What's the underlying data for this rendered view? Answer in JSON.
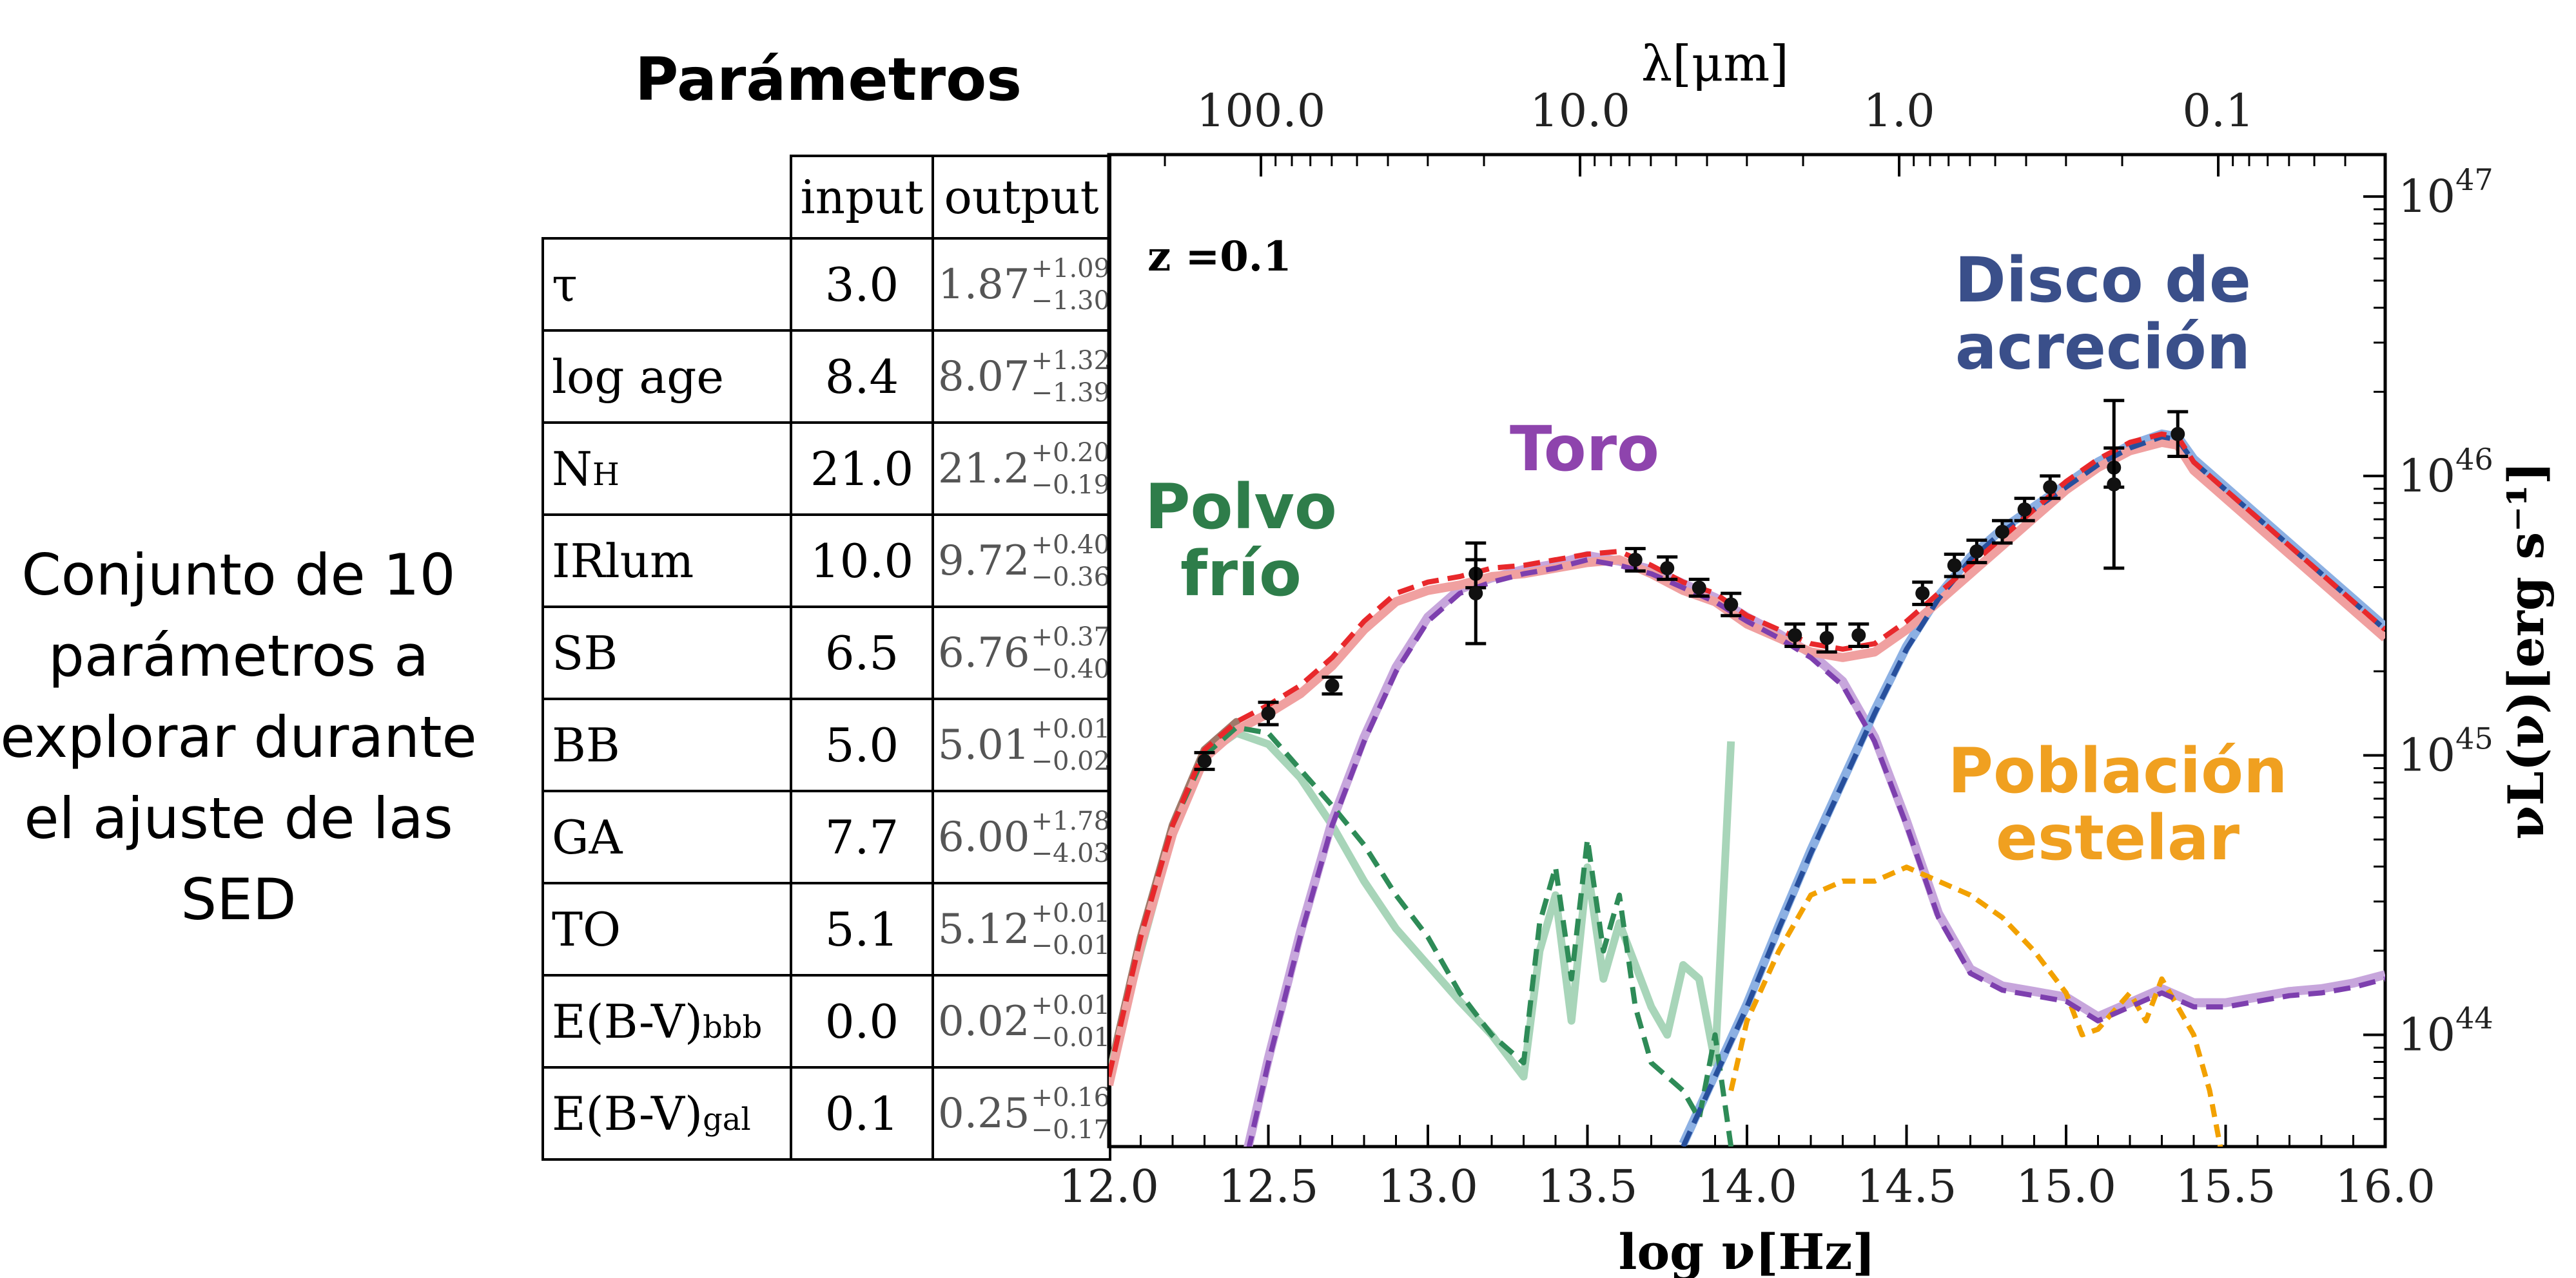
{
  "side_note": {
    "lines": [
      "Conjunto de 10",
      "parámetros a",
      "explorar durante",
      "el ajuste de las",
      "SED"
    ]
  },
  "params": {
    "title": "Parámetros",
    "headers": {
      "input": "input",
      "output": "output"
    },
    "rows": [
      {
        "name": "τ",
        "sub": "",
        "input": "3.0",
        "out": "1.87",
        "plus": "+1.09",
        "minus": "−1.30"
      },
      {
        "name": "log age",
        "sub": "",
        "input": "8.4",
        "out": "8.07",
        "plus": "+1.32",
        "minus": "−1.39"
      },
      {
        "name": "N",
        "sub": "H",
        "input": "21.0",
        "out": "21.2",
        "plus": "+0.20",
        "minus": "−0.19"
      },
      {
        "name": "IRlum",
        "sub": "",
        "input": "10.0",
        "out": "9.72",
        "plus": "+0.40",
        "minus": "−0.36"
      },
      {
        "name": "SB",
        "sub": "",
        "input": "6.5",
        "out": "6.76",
        "plus": "+0.37",
        "minus": "−0.40"
      },
      {
        "name": "BB",
        "sub": "",
        "input": "5.0",
        "out": "5.01",
        "plus": "+0.01",
        "minus": "−0.02"
      },
      {
        "name": "GA",
        "sub": "",
        "input": "7.7",
        "out": "6.00",
        "plus": "+1.78",
        "minus": "−4.03"
      },
      {
        "name": "TO",
        "sub": "",
        "input": "5.1",
        "out": "5.12",
        "plus": "+0.01",
        "minus": "−0.01"
      },
      {
        "name": "E(B-V)",
        "sub": "bbb",
        "input": "0.0",
        "out": "0.02",
        "plus": "+0.01",
        "minus": "−0.01"
      },
      {
        "name": "E(B-V)",
        "sub": "gal",
        "input": "0.1",
        "out": "0.25",
        "plus": "+0.16",
        "minus": "−0.17"
      }
    ]
  },
  "chart_data": {
    "type": "line",
    "xlabel": "log ν[Hz]",
    "top_xlabel": "λ[μm]",
    "ylabel": "νL(ν)[erg s⁻¹]",
    "xlim": [
      12.0,
      16.0
    ],
    "ylim": [
      43.6,
      47.15
    ],
    "x_ticks": [
      "12.0",
      "12.5",
      "13.0",
      "13.5",
      "14.0",
      "14.5",
      "15.0",
      "15.5",
      "16.0"
    ],
    "top_ticks": [
      {
        "lambda_um": 100,
        "label": "100.0"
      },
      {
        "lambda_um": 10,
        "label": "10.0"
      },
      {
        "lambda_um": 1,
        "label": "1.0"
      },
      {
        "lambda_um": 0.1,
        "label": "0.1"
      }
    ],
    "y_ticks": [
      {
        "exp": 47,
        "label": "47"
      },
      {
        "exp": 46,
        "label": "46"
      },
      {
        "exp": 45,
        "label": "45"
      },
      {
        "exp": 44,
        "label": "44"
      }
    ],
    "y_tick_base": "10",
    "annotation": "z =0.1",
    "labels": {
      "cold_dust": [
        "Polvo",
        "frío"
      ],
      "torus": [
        "Toro"
      ],
      "disk": [
        "Disco de",
        "acreción"
      ],
      "stellar": [
        "Población",
        "estelar"
      ]
    },
    "colors": {
      "total": "#e8282b",
      "total_median": "#f0a0a0",
      "cold_dust": "#2e8b57",
      "cold_dust_median": "#a8d5b9",
      "torus": "#7d3fae",
      "torus_median": "#c7a6dc",
      "disk": "#274f9c",
      "disk_median": "#8cb0e3",
      "stellar": "#f2a100",
      "early_ir": "#a0796a",
      "label_cold_dust": "#2e7d4a",
      "label_torus": "#8e44ad",
      "label_disk": "#3a4f8a",
      "label_stellar": "#f0a020"
    },
    "series": [
      {
        "key": "total",
        "style": "dashed",
        "x": [
          12.0,
          12.1,
          12.2,
          12.3,
          12.4,
          12.5,
          12.6,
          12.7,
          12.8,
          12.9,
          13.0,
          13.1,
          13.2,
          13.3,
          13.4,
          13.5,
          13.6,
          13.7,
          13.8,
          13.9,
          14.0,
          14.1,
          14.2,
          14.3,
          14.4,
          14.5,
          14.6,
          14.7,
          14.8,
          14.9,
          15.0,
          15.1,
          15.2,
          15.3,
          15.35,
          15.4,
          15.5,
          15.6,
          15.7,
          15.8,
          15.9,
          16.0
        ],
        "y": [
          43.85,
          44.35,
          44.75,
          45.02,
          45.12,
          45.18,
          45.25,
          45.35,
          45.48,
          45.58,
          45.62,
          45.64,
          45.67,
          45.68,
          45.7,
          45.72,
          45.73,
          45.68,
          45.62,
          45.58,
          45.5,
          45.45,
          45.4,
          45.38,
          45.4,
          45.48,
          45.58,
          45.68,
          45.78,
          45.88,
          45.98,
          46.06,
          46.12,
          46.15,
          46.14,
          46.05,
          45.95,
          45.85,
          45.75,
          45.65,
          45.55,
          45.45
        ]
      },
      {
        "key": "cold_dust",
        "style": "dashed",
        "x": [
          12.0,
          12.1,
          12.2,
          12.3,
          12.4,
          12.5,
          12.6,
          12.7,
          12.8,
          12.9,
          13.0,
          13.1,
          13.2,
          13.3,
          13.35,
          13.4,
          13.45,
          13.5,
          13.55,
          13.6,
          13.65,
          13.7,
          13.75,
          13.8,
          13.85,
          13.9,
          13.95,
          14.0
        ],
        "y": [
          43.85,
          44.35,
          44.75,
          45.0,
          45.1,
          45.08,
          44.95,
          44.82,
          44.68,
          44.5,
          44.35,
          44.15,
          44.0,
          43.9,
          44.4,
          44.6,
          44.2,
          44.7,
          44.3,
          44.5,
          44.1,
          43.9,
          43.85,
          43.8,
          43.7,
          44.0,
          43.6,
          43.5
        ]
      },
      {
        "key": "cold_dust_median",
        "style": "solid",
        "x": [
          12.0,
          12.1,
          12.2,
          12.3,
          12.4,
          12.5,
          12.6,
          12.7,
          12.8,
          12.9,
          13.0,
          13.1,
          13.2,
          13.3,
          13.35,
          13.4,
          13.45,
          13.5,
          13.55,
          13.6,
          13.65,
          13.7,
          13.75,
          13.8,
          13.85,
          13.9,
          13.95
        ],
        "y": [
          43.85,
          44.3,
          44.72,
          45.0,
          45.08,
          45.04,
          44.92,
          44.75,
          44.55,
          44.38,
          44.25,
          44.12,
          44.0,
          43.85,
          44.3,
          44.5,
          44.05,
          44.6,
          44.2,
          44.4,
          44.25,
          44.1,
          44.0,
          44.25,
          44.2,
          43.9,
          45.05
        ]
      },
      {
        "key": "torus",
        "style": "dashed",
        "x": [
          12.4,
          12.5,
          12.6,
          12.7,
          12.8,
          12.9,
          13.0,
          13.1,
          13.2,
          13.3,
          13.4,
          13.5,
          13.6,
          13.7,
          13.8,
          13.9,
          14.0,
          14.1,
          14.2,
          14.3,
          14.4,
          14.5,
          14.6,
          14.7,
          14.8,
          14.9,
          15.0,
          15.1,
          15.2,
          15.3,
          15.4,
          15.5,
          15.6,
          15.7,
          15.8,
          15.9,
          16.0
        ],
        "y": [
          43.4,
          43.9,
          44.35,
          44.75,
          45.05,
          45.3,
          45.48,
          45.58,
          45.62,
          45.65,
          45.67,
          45.7,
          45.68,
          45.65,
          45.6,
          45.55,
          45.48,
          45.42,
          45.35,
          45.25,
          45.05,
          44.75,
          44.42,
          44.22,
          44.16,
          44.14,
          44.12,
          44.05,
          44.1,
          44.15,
          44.1,
          44.1,
          44.12,
          44.14,
          44.15,
          44.17,
          44.2
        ]
      },
      {
        "key": "disk",
        "style": "dashed",
        "x": [
          13.8,
          13.9,
          14.0,
          14.1,
          14.2,
          14.3,
          14.4,
          14.5,
          14.6,
          14.7,
          14.8,
          14.9,
          15.0,
          15.1,
          15.2,
          15.3,
          15.35,
          15.4,
          15.5,
          15.6,
          15.7,
          15.8,
          15.9,
          16.0
        ],
        "y": [
          43.6,
          43.85,
          44.1,
          44.38,
          44.65,
          44.9,
          45.15,
          45.38,
          45.56,
          45.7,
          45.8,
          45.88,
          45.96,
          46.04,
          46.1,
          46.14,
          46.13,
          46.05,
          45.95,
          45.85,
          45.75,
          45.65,
          45.55,
          45.45
        ]
      },
      {
        "key": "stellar",
        "style": "dashed",
        "x": [
          13.95,
          14.0,
          14.1,
          14.2,
          14.3,
          14.4,
          14.5,
          14.6,
          14.7,
          14.8,
          14.9,
          15.0,
          15.05,
          15.1,
          15.2,
          15.25,
          15.3,
          15.35,
          15.4,
          15.45,
          15.5
        ],
        "y": [
          43.8,
          44.05,
          44.3,
          44.5,
          44.55,
          44.55,
          44.6,
          44.55,
          44.5,
          44.42,
          44.3,
          44.15,
          44.0,
          44.02,
          44.15,
          44.05,
          44.2,
          44.1,
          44.0,
          43.8,
          43.5
        ]
      },
      {
        "key": "data",
        "style": "points",
        "x": [
          12.3,
          12.5,
          12.7,
          13.15,
          13.15,
          13.65,
          13.75,
          13.85,
          13.95,
          14.15,
          14.25,
          14.35,
          14.55,
          14.65,
          14.72,
          14.8,
          14.87,
          14.95,
          15.15,
          15.15,
          15.35
        ],
        "y": [
          44.98,
          45.15,
          45.25,
          45.65,
          45.58,
          45.7,
          45.67,
          45.6,
          45.54,
          45.43,
          45.42,
          45.43,
          45.58,
          45.68,
          45.73,
          45.8,
          45.88,
          45.96,
          46.03,
          45.97,
          46.15
        ],
        "err": [
          0.03,
          0.04,
          0.03,
          0.05,
          0.18,
          0.04,
          0.04,
          0.03,
          0.04,
          0.04,
          0.05,
          0.04,
          0.04,
          0.04,
          0.04,
          0.04,
          0.04,
          0.04,
          0.07,
          0.3,
          0.08
        ]
      }
    ]
  }
}
